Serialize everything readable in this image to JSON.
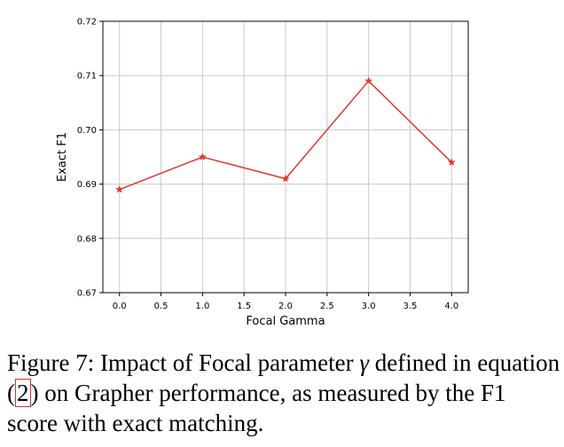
{
  "chart_data": {
    "type": "line",
    "x": [
      0.0,
      1.0,
      2.0,
      3.0,
      4.0
    ],
    "series": [
      {
        "values": [
          0.689,
          0.695,
          0.691,
          0.709,
          0.694
        ],
        "color": "#e0392b",
        "marker": "star"
      }
    ],
    "xlabel": "Focal Gamma",
    "ylabel": "Exact F1",
    "xlim": [
      -0.2,
      4.2
    ],
    "ylim": [
      0.67,
      0.72
    ],
    "xticks": [
      "0.0",
      "0.5",
      "1.0",
      "1.5",
      "2.0",
      "2.5",
      "3.0",
      "3.5",
      "4.0"
    ],
    "yticks": [
      "0.67",
      "0.68",
      "0.69",
      "0.70",
      "0.71",
      "0.72"
    ],
    "grid": true
  },
  "caption": {
    "part1": "Figure 7: Impact of Focal parameter ",
    "symbol": "γ",
    "part2": " defined in equation (",
    "ref": "2",
    "part3": ") on Grapher performance, as measured by the F1 score with exact matching."
  }
}
